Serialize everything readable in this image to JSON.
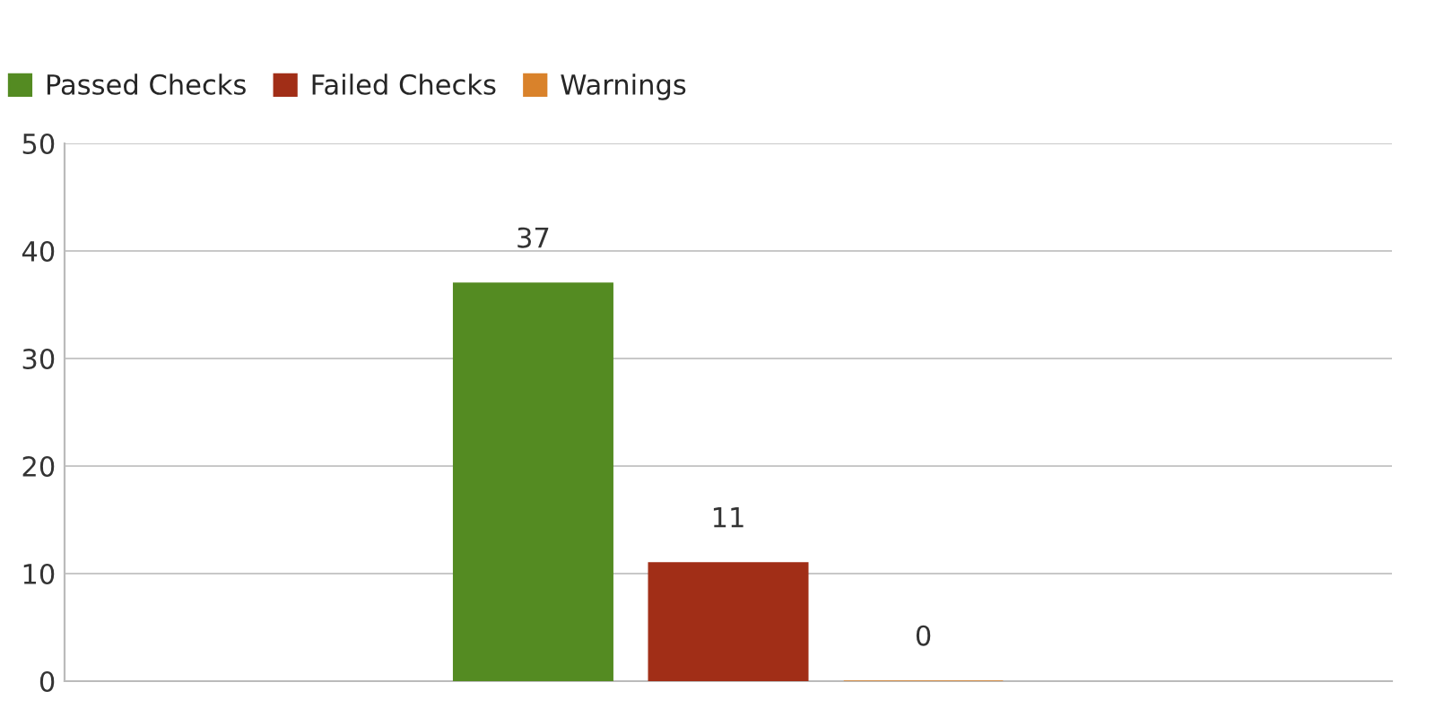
{
  "chart_data": {
    "type": "bar",
    "categories": [
      null
    ],
    "series": [
      {
        "name": "Passed Checks",
        "color": "#548b22",
        "values": [
          37
        ]
      },
      {
        "name": "Failed Checks",
        "color": "#a12e17",
        "values": [
          11
        ]
      },
      {
        "name": "Warnings",
        "color": "#d9822b",
        "values": [
          0
        ]
      }
    ],
    "ylim": [
      0,
      50
    ],
    "yticks": [
      0,
      10,
      20,
      30,
      40,
      50
    ],
    "grid": "y",
    "legend": "top left",
    "data_labels": true
  }
}
